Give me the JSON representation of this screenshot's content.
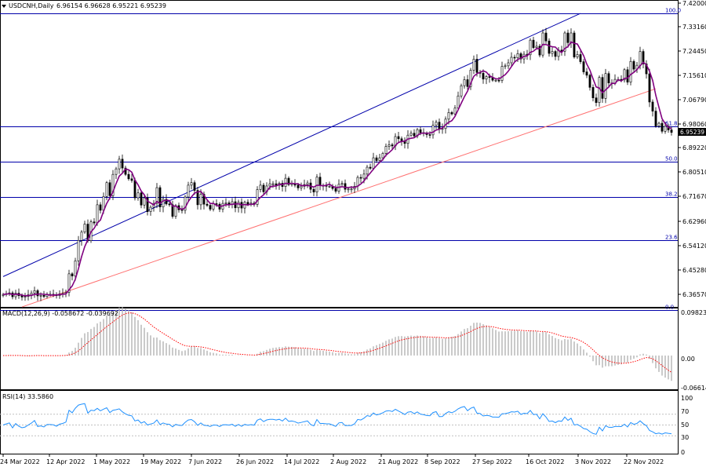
{
  "chart_data": [
    {
      "type": "candlestick",
      "symbol_label": "USDCNH,Daily",
      "ohlc_label": "6.96154 6.96628 6.95221 6.95239",
      "last_price_label": "6.95239",
      "price_axis_ticks": [
        "7.42000",
        "7.33160",
        "7.24450",
        "7.15610",
        "7.06790",
        "6.98060",
        "6.89220",
        "6.80510",
        "6.71670",
        "6.62960",
        "6.54120",
        "6.45280",
        "6.36570"
      ],
      "price_range": [
        6.32,
        7.42
      ],
      "date_axis_labels": [
        "24 Mar 2022",
        "12 Apr 2022",
        "1 May 2022",
        "19 May 2022",
        "7 Jun 2022",
        "26 Jun 2022",
        "14 Jul 2022",
        "2 Aug 2022",
        "21 Aug 2022",
        "8 Sep 2022",
        "27 Sep 2022",
        "16 Oct 2022",
        "3 Nov 2022",
        "22 Nov 2022"
      ],
      "fibonacci_levels": [
        {
          "label": "100.0",
          "price": 7.383
        },
        {
          "label": "61.8",
          "price": 6.974
        },
        {
          "label": "50.0",
          "price": 6.845
        },
        {
          "label": "38.2",
          "price": 6.718
        },
        {
          "label": "23.6",
          "price": 6.562
        },
        {
          "label": "0.0",
          "price": 6.309
        }
      ],
      "trendlines": [
        {
          "color": "#0000aa",
          "from": {
            "bar": 0,
            "price": 6.43
          },
          "to": {
            "bar": 184,
            "price": 7.383
          }
        },
        {
          "color": "#ff7070",
          "from": {
            "bar": 6,
            "price": 6.32
          },
          "to": {
            "bar": 208,
            "price": 7.11
          }
        }
      ],
      "ma_color": "#800080",
      "closes": [
        6.365,
        6.368,
        6.371,
        6.357,
        6.37,
        6.361,
        6.356,
        6.358,
        6.364,
        6.37,
        6.379,
        6.36,
        6.362,
        6.358,
        6.366,
        6.366,
        6.365,
        6.361,
        6.367,
        6.369,
        6.373,
        6.44,
        6.432,
        6.487,
        6.561,
        6.591,
        6.62,
        6.56,
        6.628,
        6.624,
        6.69,
        6.67,
        6.72,
        6.77,
        6.723,
        6.8,
        6.82,
        6.855,
        6.823,
        6.8,
        6.784,
        6.778,
        6.715,
        6.733,
        6.689,
        6.715,
        6.665,
        6.681,
        6.695,
        6.752,
        6.682,
        6.71,
        6.693,
        6.69,
        6.648,
        6.687,
        6.672,
        6.67,
        6.718,
        6.761,
        6.77,
        6.742,
        6.69,
        6.728,
        6.692,
        6.688,
        6.674,
        6.694,
        6.692,
        6.674,
        6.695,
        6.697,
        6.692,
        6.701,
        6.679,
        6.699,
        6.678,
        6.699,
        6.691,
        6.696,
        6.691,
        6.745,
        6.761,
        6.737,
        6.758,
        6.766,
        6.766,
        6.761,
        6.768,
        6.756,
        6.786,
        6.763,
        6.766,
        6.761,
        6.751,
        6.757,
        6.763,
        6.769,
        6.746,
        6.736,
        6.79,
        6.76,
        6.76,
        6.757,
        6.757,
        6.749,
        6.739,
        6.764,
        6.767,
        6.746,
        6.747,
        6.747,
        6.757,
        6.789,
        6.786,
        6.801,
        6.826,
        6.822,
        6.86,
        6.85,
        6.86,
        6.876,
        6.901,
        6.907,
        6.903,
        6.937,
        6.929,
        6.921,
        6.912,
        6.942,
        6.949,
        6.939,
        6.962,
        6.951,
        6.948,
        6.944,
        6.943,
        6.978,
        6.989,
        6.964,
        6.966,
        7.0,
        7.024,
        7.019,
        7.04,
        7.084,
        7.121,
        7.143,
        7.118,
        7.177,
        7.217,
        7.169,
        7.166,
        7.145,
        7.154,
        7.151,
        7.141,
        7.141,
        7.14,
        7.191,
        7.193,
        7.204,
        7.224,
        7.222,
        7.237,
        7.218,
        7.235,
        7.233,
        7.286,
        7.259,
        7.264,
        7.232,
        7.312,
        7.283,
        7.238,
        7.245,
        7.227,
        7.25,
        7.246,
        7.312,
        7.277,
        7.312,
        7.225,
        7.234,
        7.208,
        7.171,
        7.159,
        7.115,
        7.077,
        7.06,
        7.151,
        7.075,
        7.165,
        7.131,
        7.129,
        7.144,
        7.144,
        7.142,
        7.179,
        7.134,
        7.209,
        7.181,
        7.195,
        7.245,
        7.2,
        7.164,
        7.062,
        7.029,
        6.975,
        6.985,
        6.956,
        6.974,
        6.961,
        6.952
      ],
      "macd": {
        "label": "MACD(12,26,9) -0.058672 -0.039692",
        "axis_ticks": [
          "0.098235",
          "0.00",
          "-0.066144"
        ],
        "range": [
          -0.066144,
          0.098235
        ]
      },
      "rsi": {
        "label": "RSI(14) 33.5860",
        "axis_ticks": [
          "100",
          "70",
          "50",
          "30",
          "0"
        ],
        "levels": [
          70,
          30
        ],
        "color": "#1e90ff"
      }
    }
  ]
}
